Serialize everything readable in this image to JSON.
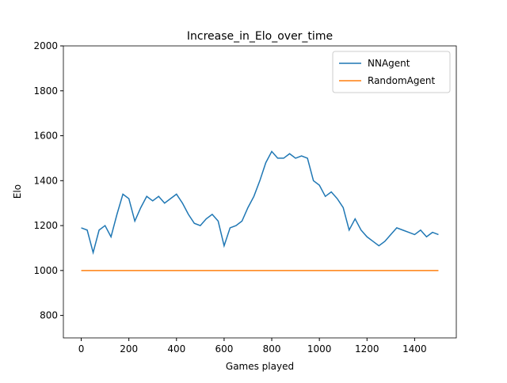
{
  "chart_data": {
    "type": "line",
    "title": "Increase_in_Elo_over_time",
    "x_label": "Games played",
    "y_label": "Elo",
    "series": [
      {
        "name": "NNAgent",
        "color": "#1f77b4",
        "x": [
          0,
          25,
          50,
          75,
          100,
          125,
          150,
          175,
          200,
          225,
          250,
          275,
          300,
          325,
          350,
          375,
          400,
          425,
          450,
          475,
          500,
          525,
          550,
          575,
          600,
          625,
          650,
          675,
          700,
          725,
          750,
          775,
          800,
          825,
          850,
          875,
          900,
          925,
          950,
          975,
          1000,
          1025,
          1050,
          1075,
          1100,
          1125,
          1150,
          1175,
          1200,
          1225,
          1250,
          1275,
          1300,
          1325,
          1350,
          1375,
          1400,
          1425,
          1450,
          1475,
          1500
        ],
        "values": [
          1190,
          1180,
          1080,
          1180,
          1200,
          1150,
          1250,
          1340,
          1320,
          1220,
          1280,
          1330,
          1310,
          1330,
          1300,
          1320,
          1340,
          1300,
          1250,
          1210,
          1200,
          1230,
          1250,
          1220,
          1110,
          1190,
          1200,
          1220,
          1280,
          1330,
          1400,
          1480,
          1530,
          1500,
          1500,
          1520,
          1500,
          1510,
          1500,
          1400,
          1380,
          1330,
          1350,
          1320,
          1280,
          1180,
          1230,
          1180,
          1150,
          1130,
          1110,
          1130,
          1160,
          1190,
          1180,
          1170,
          1160,
          1180,
          1150,
          1170,
          1160
        ]
      },
      {
        "name": "RandomAgent",
        "color": "#ff7f0e",
        "x": [
          0,
          1500
        ],
        "values": [
          1000,
          1000
        ]
      }
    ],
    "xlim": [
      -75,
      1575
    ],
    "xticks": [
      0,
      200,
      400,
      600,
      800,
      1000,
      1200,
      1400
    ],
    "ylim": [
      700,
      2000
    ],
    "yticks": [
      800,
      1000,
      1200,
      1400,
      1600,
      1800,
      2000
    ],
    "legend": "upper right"
  }
}
